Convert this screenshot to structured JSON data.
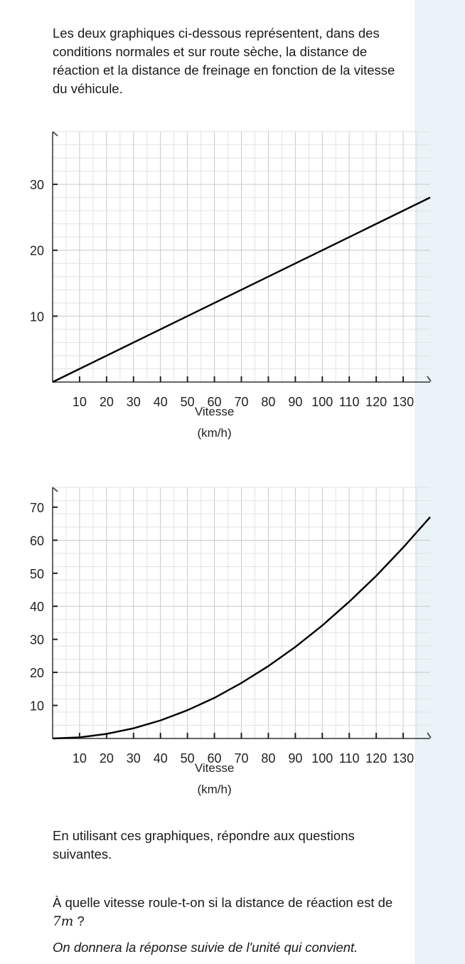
{
  "intro_text": "Les deux graphiques ci-dessous représentent, dans des conditions normales et sur route sèche, la distance de réaction et la distance de freinage en fonction de la vitesse du véhicule.",
  "chart_data": [
    {
      "type": "line",
      "title": "",
      "xlabel_line1": "Vitesse",
      "xlabel_line2": "(km/h)",
      "ylabel": "",
      "xlim": [
        0,
        140
      ],
      "ylim": [
        0,
        38
      ],
      "x_ticks": [
        10,
        20,
        30,
        40,
        50,
        60,
        70,
        80,
        90,
        100,
        110,
        120,
        130
      ],
      "y_ticks": [
        10,
        20,
        30
      ],
      "grid": true,
      "series": [
        {
          "x": [
            0,
            140
          ],
          "y": [
            0,
            28
          ]
        }
      ]
    },
    {
      "type": "line",
      "title": "",
      "xlabel_line1": "Vitesse",
      "xlabel_line2": "(km/h)",
      "ylabel": "",
      "xlim": [
        0,
        140
      ],
      "ylim": [
        0,
        76
      ],
      "x_ticks": [
        10,
        20,
        30,
        40,
        50,
        60,
        70,
        80,
        90,
        100,
        110,
        120,
        130
      ],
      "y_ticks": [
        10,
        20,
        30,
        40,
        50,
        60,
        70
      ],
      "grid": true,
      "series": [
        {
          "x": [
            0,
            10,
            20,
            30,
            40,
            50,
            60,
            70,
            80,
            90,
            100,
            110,
            120,
            130,
            140
          ],
          "y": [
            0,
            0.34,
            1.37,
            3.08,
            5.47,
            8.55,
            12.3,
            16.8,
            21.9,
            27.7,
            34.2,
            41.4,
            49.2,
            57.8,
            67
          ]
        }
      ]
    }
  ],
  "question_intro": "En utilisant ces graphiques, répondre aux questions suivantes.",
  "question": {
    "before": "À quelle vitesse roule-t-on si la distance de réaction est de ",
    "math": "7m",
    "after": " ?"
  },
  "instruction": "On donnera la réponse suivie de l'unité qui convient."
}
